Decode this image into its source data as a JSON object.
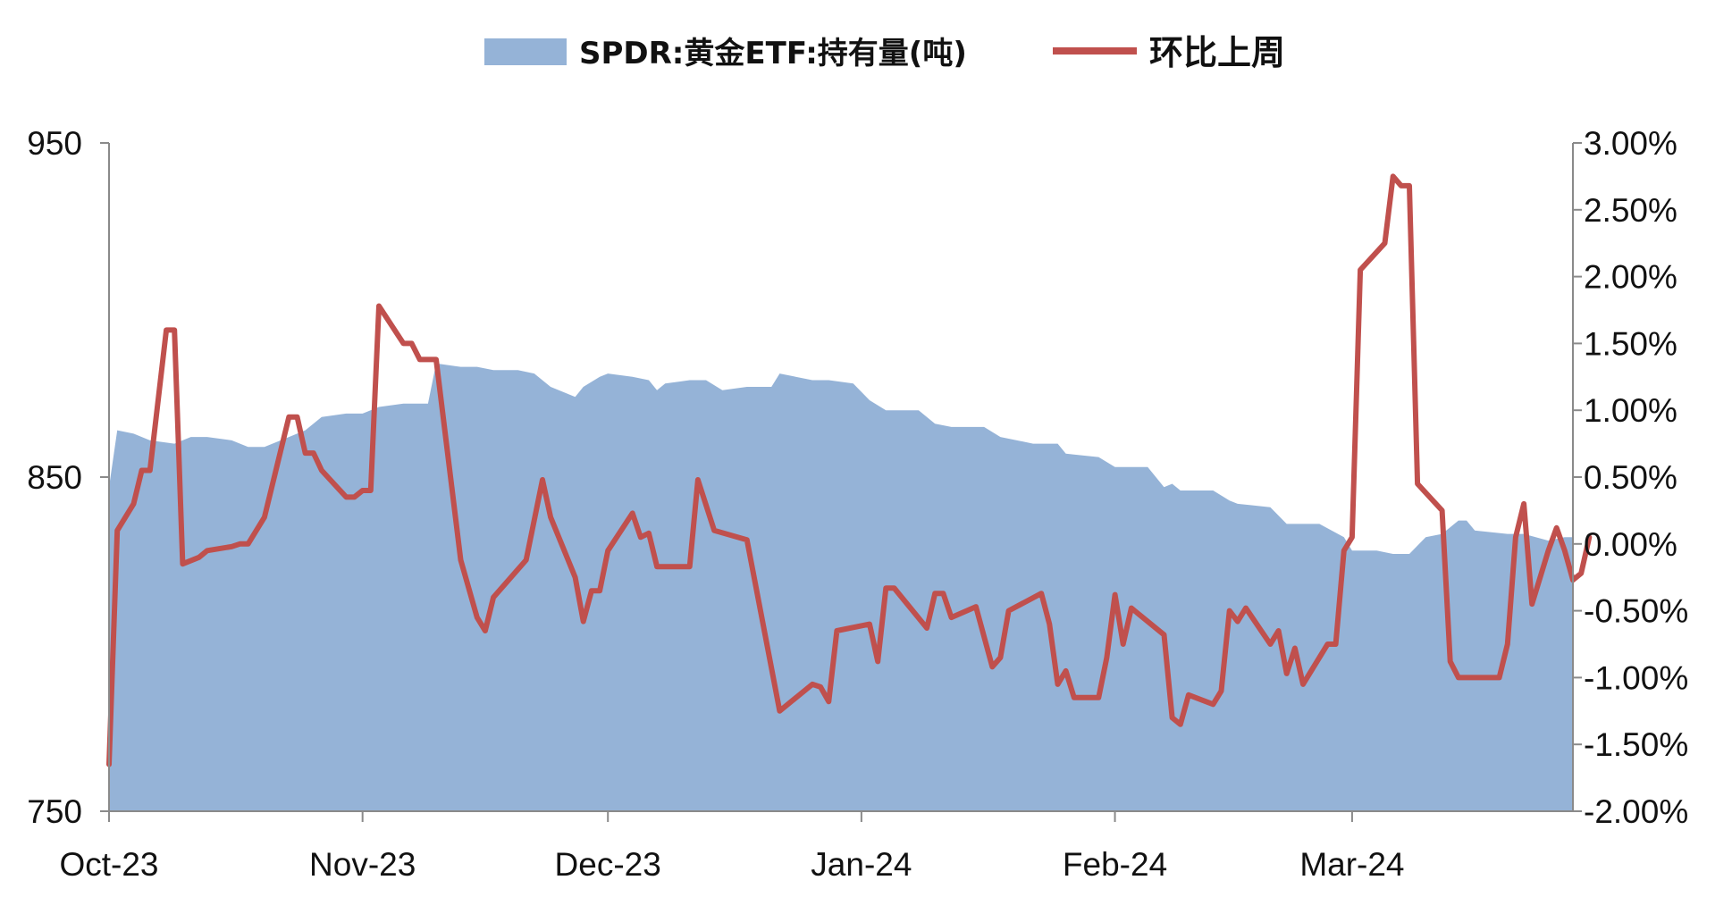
{
  "chart_data": {
    "type": "area",
    "title": "",
    "x_ticks": [
      "Oct-23",
      "Nov-23",
      "Dec-23",
      "Jan-24",
      "Feb-24",
      "Mar-24"
    ],
    "x_range": [
      "2023-10-01",
      "2024-03-28"
    ],
    "legend_position": "top-center",
    "grid": false,
    "left_axis": {
      "min": 750,
      "max": 950,
      "ticks": [
        "750",
        "850",
        "950"
      ]
    },
    "right_axis": {
      "min": -2.0,
      "max": 3.0,
      "ticks": [
        "-2.00%",
        "-1.50%",
        "-1.00%",
        "-0.50%",
        "0.00%",
        "0.50%",
        "1.00%",
        "1.50%",
        "2.00%",
        "2.50%",
        "3.00%"
      ]
    },
    "series": [
      {
        "name": "SPDR:黄金ETF:持有量(吨)",
        "type": "area",
        "axis": "left",
        "color": "#95b3d7",
        "points": [
          [
            "2023-10-01",
            847
          ],
          [
            "2023-10-02",
            864
          ],
          [
            "2023-10-04",
            863
          ],
          [
            "2023-10-06",
            861
          ],
          [
            "2023-10-09",
            860
          ],
          [
            "2023-10-11",
            862
          ],
          [
            "2023-10-13",
            862
          ],
          [
            "2023-10-16",
            861
          ],
          [
            "2023-10-18",
            859
          ],
          [
            "2023-10-20",
            859
          ],
          [
            "2023-10-23",
            862
          ],
          [
            "2023-10-25",
            864
          ],
          [
            "2023-10-27",
            868
          ],
          [
            "2023-10-30",
            869
          ],
          [
            "2023-11-01",
            869
          ],
          [
            "2023-11-03",
            871
          ],
          [
            "2023-11-06",
            872
          ],
          [
            "2023-11-09",
            872
          ],
          [
            "2023-11-10",
            884
          ],
          [
            "2023-11-13",
            883
          ],
          [
            "2023-11-15",
            883
          ],
          [
            "2023-11-17",
            882
          ],
          [
            "2023-11-20",
            882
          ],
          [
            "2023-11-22",
            881
          ],
          [
            "2023-11-24",
            877
          ],
          [
            "2023-11-27",
            874
          ],
          [
            "2023-11-28",
            877
          ],
          [
            "2023-11-30",
            880
          ],
          [
            "2023-12-01",
            881
          ],
          [
            "2023-12-04",
            880
          ],
          [
            "2023-12-06",
            879
          ],
          [
            "2023-12-07",
            876
          ],
          [
            "2023-12-08",
            878
          ],
          [
            "2023-12-11",
            879
          ],
          [
            "2023-12-13",
            879
          ],
          [
            "2023-12-15",
            876
          ],
          [
            "2023-12-18",
            877
          ],
          [
            "2023-12-21",
            877
          ],
          [
            "2023-12-22",
            881
          ],
          [
            "2023-12-26",
            879
          ],
          [
            "2023-12-28",
            879
          ],
          [
            "2023-12-31",
            878
          ],
          [
            "2024-01-02",
            873
          ],
          [
            "2024-01-04",
            870
          ],
          [
            "2024-01-08",
            870
          ],
          [
            "2024-01-10",
            866
          ],
          [
            "2024-01-12",
            865
          ],
          [
            "2024-01-16",
            865
          ],
          [
            "2024-01-18",
            862
          ],
          [
            "2024-01-22",
            860
          ],
          [
            "2024-01-25",
            860
          ],
          [
            "2024-01-26",
            857
          ],
          [
            "2024-01-30",
            856
          ],
          [
            "2024-02-01",
            853
          ],
          [
            "2024-02-05",
            853
          ],
          [
            "2024-02-07",
            847
          ],
          [
            "2024-02-08",
            848
          ],
          [
            "2024-02-09",
            846
          ],
          [
            "2024-02-13",
            846
          ],
          [
            "2024-02-15",
            843
          ],
          [
            "2024-02-16",
            842
          ],
          [
            "2024-02-20",
            841
          ],
          [
            "2024-02-22",
            836
          ],
          [
            "2024-02-26",
            836
          ],
          [
            "2024-02-29",
            832
          ],
          [
            "2024-03-01",
            828
          ],
          [
            "2024-03-04",
            828
          ],
          [
            "2024-03-06",
            827
          ],
          [
            "2024-03-08",
            827
          ],
          [
            "2024-03-10",
            832
          ],
          [
            "2024-03-12",
            833
          ],
          [
            "2024-03-14",
            837
          ],
          [
            "2024-03-15",
            837
          ],
          [
            "2024-03-16",
            834
          ],
          [
            "2024-03-20",
            833
          ],
          [
            "2024-03-22",
            833
          ],
          [
            "2024-03-25",
            831
          ],
          [
            "2024-03-27",
            832
          ],
          [
            "2024-03-28",
            832
          ]
        ]
      },
      {
        "name": "环比上周",
        "type": "line",
        "axis": "right",
        "color": "#c0504d",
        "points": [
          [
            "2023-10-01",
            -1.65
          ],
          [
            "2023-10-02",
            0.1
          ],
          [
            "2023-10-04",
            0.3
          ],
          [
            "2023-10-05",
            0.55
          ],
          [
            "2023-10-06",
            0.55
          ],
          [
            "2023-10-08",
            1.6
          ],
          [
            "2023-10-09",
            1.6
          ],
          [
            "2023-10-10",
            -0.15
          ],
          [
            "2023-10-12",
            -0.1
          ],
          [
            "2023-10-13",
            -0.05
          ],
          [
            "2023-10-16",
            -0.02
          ],
          [
            "2023-10-17",
            0.0
          ],
          [
            "2023-10-18",
            0.0
          ],
          [
            "2023-10-20",
            0.2
          ],
          [
            "2023-10-23",
            0.95
          ],
          [
            "2023-10-24",
            0.95
          ],
          [
            "2023-10-25",
            0.68
          ],
          [
            "2023-10-26",
            0.68
          ],
          [
            "2023-10-27",
            0.55
          ],
          [
            "2023-10-30",
            0.35
          ],
          [
            "2023-10-31",
            0.35
          ],
          [
            "2023-11-01",
            0.4
          ],
          [
            "2023-11-02",
            0.4
          ],
          [
            "2023-11-03",
            1.78
          ],
          [
            "2023-11-06",
            1.5
          ],
          [
            "2023-11-07",
            1.5
          ],
          [
            "2023-11-08",
            1.38
          ],
          [
            "2023-11-10",
            1.38
          ],
          [
            "2023-11-13",
            -0.12
          ],
          [
            "2023-11-15",
            -0.55
          ],
          [
            "2023-11-16",
            -0.65
          ],
          [
            "2023-11-17",
            -0.4
          ],
          [
            "2023-11-21",
            -0.12
          ],
          [
            "2023-11-23",
            0.48
          ],
          [
            "2023-11-24",
            0.2
          ],
          [
            "2023-11-27",
            -0.25
          ],
          [
            "2023-11-28",
            -0.58
          ],
          [
            "2023-11-29",
            -0.35
          ],
          [
            "2023-11-30",
            -0.35
          ],
          [
            "2023-12-01",
            -0.05
          ],
          [
            "2023-12-04",
            0.23
          ],
          [
            "2023-12-05",
            0.05
          ],
          [
            "2023-12-06",
            0.08
          ],
          [
            "2023-12-07",
            -0.17
          ],
          [
            "2023-12-11",
            -0.17
          ],
          [
            "2023-12-12",
            0.48
          ],
          [
            "2023-12-14",
            0.1
          ],
          [
            "2023-12-18",
            0.03
          ],
          [
            "2023-12-22",
            -1.25
          ],
          [
            "2023-12-26",
            -1.05
          ],
          [
            "2023-12-27",
            -1.07
          ],
          [
            "2023-12-28",
            -1.18
          ],
          [
            "2023-12-29",
            -0.65
          ],
          [
            "2024-01-02",
            -0.6
          ],
          [
            "2024-01-03",
            -0.88
          ],
          [
            "2024-01-04",
            -0.33
          ],
          [
            "2024-01-05",
            -0.33
          ],
          [
            "2024-01-09",
            -0.63
          ],
          [
            "2024-01-10",
            -0.37
          ],
          [
            "2024-01-11",
            -0.37
          ],
          [
            "2024-01-12",
            -0.55
          ],
          [
            "2024-01-15",
            -0.47
          ],
          [
            "2024-01-17",
            -0.92
          ],
          [
            "2024-01-18",
            -0.85
          ],
          [
            "2024-01-19",
            -0.5
          ],
          [
            "2024-01-23",
            -0.37
          ],
          [
            "2024-01-24",
            -0.6
          ],
          [
            "2024-01-25",
            -1.05
          ],
          [
            "2024-01-26",
            -0.95
          ],
          [
            "2024-01-27",
            -1.15
          ],
          [
            "2024-01-30",
            -1.15
          ],
          [
            "2024-01-31",
            -0.85
          ],
          [
            "2024-02-01",
            -0.38
          ],
          [
            "2024-02-02",
            -0.75
          ],
          [
            "2024-02-03",
            -0.48
          ],
          [
            "2024-02-07",
            -0.68
          ],
          [
            "2024-02-08",
            -1.3
          ],
          [
            "2024-02-09",
            -1.35
          ],
          [
            "2024-02-10",
            -1.13
          ],
          [
            "2024-02-13",
            -1.2
          ],
          [
            "2024-02-14",
            -1.1
          ],
          [
            "2024-02-15",
            -0.5
          ],
          [
            "2024-02-16",
            -0.58
          ],
          [
            "2024-02-17",
            -0.48
          ],
          [
            "2024-02-20",
            -0.75
          ],
          [
            "2024-02-21",
            -0.65
          ],
          [
            "2024-02-22",
            -0.97
          ],
          [
            "2024-02-23",
            -0.78
          ],
          [
            "2024-02-24",
            -1.05
          ],
          [
            "2024-02-27",
            -0.75
          ],
          [
            "2024-02-28",
            -0.75
          ],
          [
            "2024-02-29",
            -0.05
          ],
          [
            "2024-03-01",
            0.05
          ],
          [
            "2024-03-02",
            2.05
          ],
          [
            "2024-03-05",
            2.25
          ],
          [
            "2024-03-06",
            2.75
          ],
          [
            "2024-03-07",
            2.68
          ],
          [
            "2024-03-08",
            2.68
          ],
          [
            "2024-03-09",
            0.45
          ],
          [
            "2024-03-12",
            0.25
          ],
          [
            "2024-03-13",
            -0.88
          ],
          [
            "2024-03-14",
            -1.0
          ],
          [
            "2024-03-19",
            -1.0
          ],
          [
            "2024-03-20",
            -0.75
          ],
          [
            "2024-03-21",
            0.05
          ],
          [
            "2024-03-22",
            0.3
          ],
          [
            "2024-03-23",
            -0.45
          ],
          [
            "2024-03-25",
            -0.05
          ],
          [
            "2024-03-26",
            0.12
          ],
          [
            "2024-03-27",
            -0.05
          ],
          [
            "2024-03-28",
            -0.27
          ],
          [
            "2024-03-29",
            -0.22
          ],
          [
            "2024-03-30",
            0.05
          ]
        ]
      }
    ]
  }
}
